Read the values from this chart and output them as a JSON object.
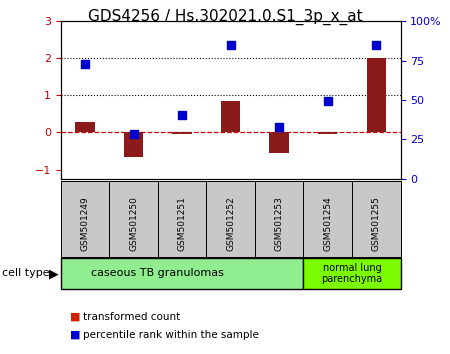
{
  "title": "GDS4256 / Hs.302021.0.S1_3p_x_at",
  "samples": [
    "GSM501249",
    "GSM501250",
    "GSM501251",
    "GSM501252",
    "GSM501253",
    "GSM501254",
    "GSM501255"
  ],
  "transformed_count": [
    0.28,
    -0.65,
    -0.04,
    0.85,
    -0.55,
    -0.04,
    2.0
  ],
  "percentile_rank": [
    1.85,
    -0.05,
    0.47,
    2.35,
    0.15,
    0.85,
    2.35
  ],
  "ylim_left": [
    -1.25,
    3.0
  ],
  "ylim_right": [
    0,
    100
  ],
  "yticks_left": [
    -1,
    0,
    1,
    2,
    3
  ],
  "yticks_right": [
    0,
    25,
    50,
    75,
    100
  ],
  "hlines": [
    1.0,
    2.0
  ],
  "dashed_hline": 0.0,
  "bar_color": "#8B1A1A",
  "dot_color": "#0000CD",
  "group1_label": "caseous TB granulomas",
  "group1_color": "#90EE90",
  "group1_n": 5,
  "group2_label": "normal lung\nparenchyma",
  "group2_color": "#7CFC00",
  "group2_n": 2,
  "cell_type_label": "cell type",
  "legend_red_label": "transformed count",
  "legend_blue_label": "percentile rank within the sample",
  "bar_color_legend": "#CC2200",
  "dot_color_legend": "#0000CC",
  "plot_bg": "#ffffff",
  "tick_label_fontsize": 8,
  "title_fontsize": 11,
  "bar_width": 0.4
}
